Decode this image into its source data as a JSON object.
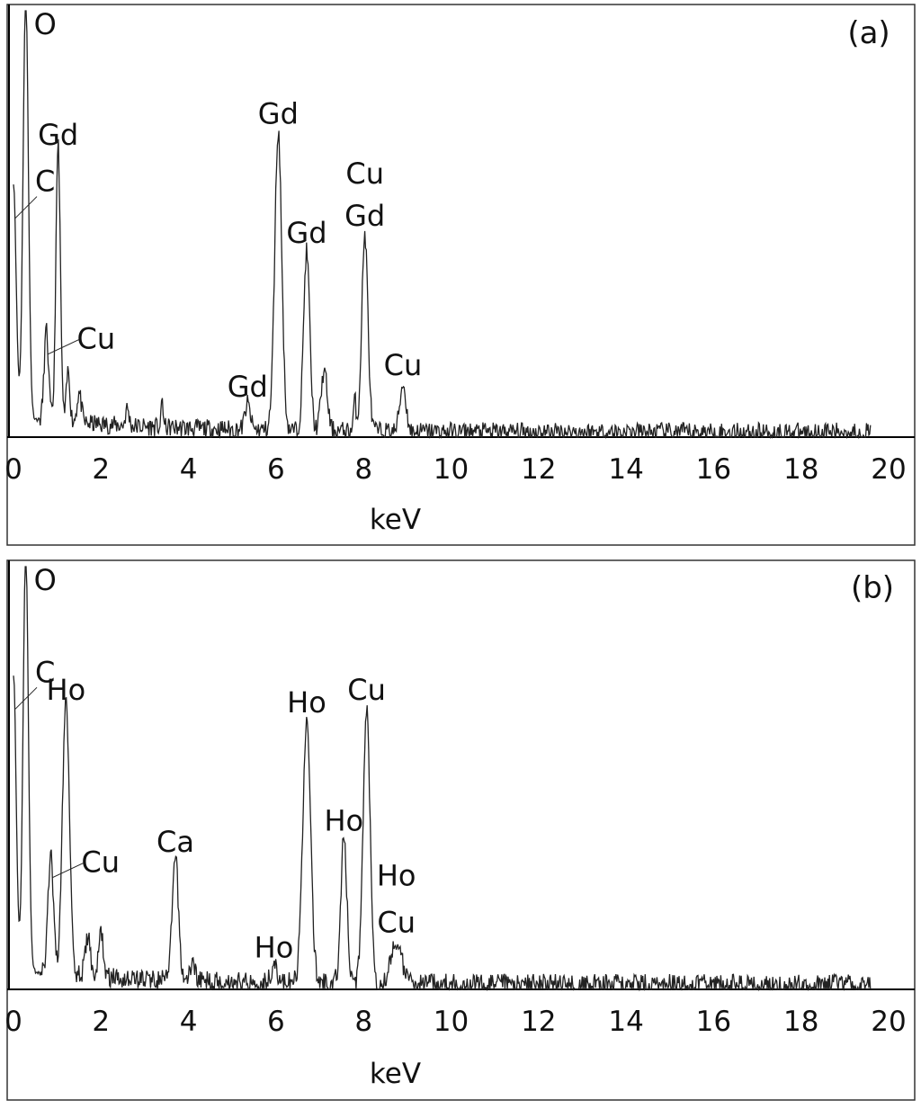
{
  "chart_data": [
    {
      "panel": "(a)",
      "type": "line",
      "xlabel": "keV",
      "ylabel": "",
      "xlim": [
        0,
        20
      ],
      "xticks": [
        "0",
        "2",
        "4",
        "6",
        "8",
        "10",
        "12",
        "14",
        "16",
        "18",
        "20"
      ],
      "grid": false,
      "peaks": [
        {
          "x": 0.0,
          "h": 0.55,
          "w": 0.06
        },
        {
          "x": 0.28,
          "h": 1.0,
          "w": 0.06
        },
        {
          "x": 0.75,
          "h": 0.21,
          "w": 0.05
        },
        {
          "x": 1.02,
          "h": 0.65,
          "w": 0.05
        },
        {
          "x": 1.25,
          "h": 0.12,
          "w": 0.04
        },
        {
          "x": 1.5,
          "h": 0.07,
          "w": 0.05
        },
        {
          "x": 2.6,
          "h": 0.04,
          "w": 0.04
        },
        {
          "x": 3.4,
          "h": 0.07,
          "w": 0.02
        },
        {
          "x": 5.35,
          "h": 0.06,
          "w": 0.06
        },
        {
          "x": 6.05,
          "h": 0.7,
          "w": 0.08
        },
        {
          "x": 6.7,
          "h": 0.42,
          "w": 0.07
        },
        {
          "x": 7.1,
          "h": 0.14,
          "w": 0.07
        },
        {
          "x": 7.8,
          "h": 0.07,
          "w": 0.03
        },
        {
          "x": 8.03,
          "h": 0.46,
          "w": 0.07
        },
        {
          "x": 8.9,
          "h": 0.11,
          "w": 0.07
        }
      ],
      "noise_seed": 11,
      "noise_amp": 0.022,
      "end_x": 19.6,
      "annotations": [
        {
          "text": "O",
          "x": 0.3,
          "y": 1.0
        },
        {
          "text": "Gd",
          "x": 1.02,
          "y": 0.66
        },
        {
          "text": "C",
          "x": 0.0,
          "y": 0.56
        },
        {
          "text": "Cu",
          "x": 0.75,
          "y": 0.22
        },
        {
          "text": "Gd",
          "x": 5.35,
          "y": 0.07
        },
        {
          "text": "Gd",
          "x": 6.05,
          "y": 0.71
        },
        {
          "text": "Gd",
          "x": 6.7,
          "y": 0.43
        },
        {
          "text": "Cu",
          "x": 8.03,
          "y": 0.57
        },
        {
          "text": "Gd",
          "x": 8.03,
          "y": 0.47
        },
        {
          "text": "Cu",
          "x": 8.9,
          "y": 0.12
        }
      ]
    },
    {
      "panel": "(b)",
      "type": "line",
      "xlabel": "keV",
      "ylabel": "",
      "xlim": [
        0,
        20
      ],
      "xticks": [
        "0",
        "2",
        "4",
        "6",
        "8",
        "10",
        "12",
        "14",
        "16",
        "18",
        "20"
      ],
      "grid": false,
      "peaks": [
        {
          "x": 0.0,
          "h": 0.7,
          "w": 0.06
        },
        {
          "x": 0.28,
          "h": 1.0,
          "w": 0.06
        },
        {
          "x": 0.85,
          "h": 0.28,
          "w": 0.06
        },
        {
          "x": 1.2,
          "h": 0.65,
          "w": 0.08
        },
        {
          "x": 1.7,
          "h": 0.09,
          "w": 0.06
        },
        {
          "x": 2.0,
          "h": 0.11,
          "w": 0.05
        },
        {
          "x": 3.7,
          "h": 0.29,
          "w": 0.07
        },
        {
          "x": 4.1,
          "h": 0.04,
          "w": 0.06
        },
        {
          "x": 5.95,
          "h": 0.04,
          "w": 0.07
        },
        {
          "x": 6.7,
          "h": 0.62,
          "w": 0.09
        },
        {
          "x": 7.55,
          "h": 0.34,
          "w": 0.07
        },
        {
          "x": 8.07,
          "h": 0.65,
          "w": 0.08
        },
        {
          "x": 8.75,
          "h": 0.1,
          "w": 0.12
        }
      ],
      "noise_seed": 29,
      "noise_amp": 0.024,
      "end_x": 19.6,
      "annotations": [
        {
          "text": "O",
          "x": 0.3,
          "y": 1.0
        },
        {
          "text": "Ho",
          "x": 1.2,
          "y": 0.66
        },
        {
          "text": "C",
          "x": 0.0,
          "y": 0.71
        },
        {
          "text": "Cu",
          "x": 0.85,
          "y": 0.29
        },
        {
          "text": "Ca",
          "x": 3.7,
          "y": 0.3
        },
        {
          "text": "Ho",
          "x": 5.95,
          "y": 0.05
        },
        {
          "text": "Ho",
          "x": 6.7,
          "y": 0.63
        },
        {
          "text": "Cu",
          "x": 8.07,
          "y": 0.66
        },
        {
          "text": "Ho",
          "x": 7.55,
          "y": 0.35
        },
        {
          "text": "Ho",
          "x": 8.75,
          "y": 0.22
        },
        {
          "text": "Cu",
          "x": 8.75,
          "y": 0.11
        }
      ]
    }
  ],
  "colors": {
    "line": "#222222",
    "frame": "#333333",
    "text": "#111111"
  }
}
